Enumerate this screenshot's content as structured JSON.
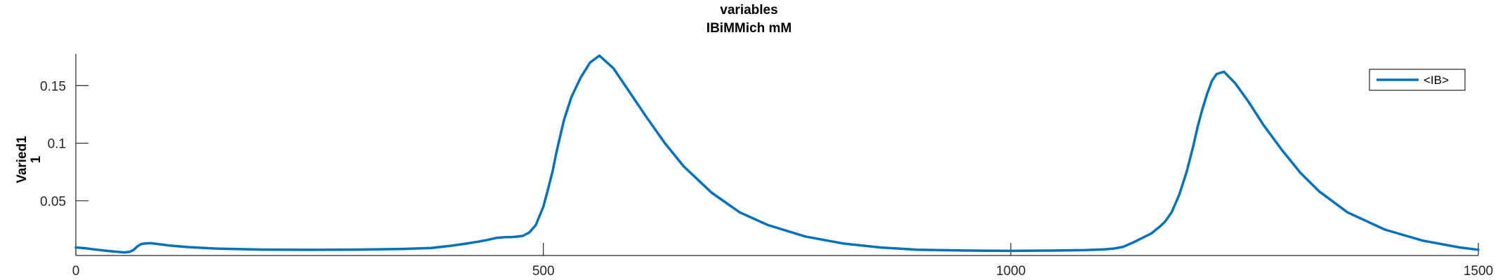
{
  "chart_data": {
    "type": "line",
    "title_lines": [
      "variables",
      "IBiMMich mM"
    ],
    "ylabel_lines": [
      "Varied1",
      "1"
    ],
    "xlabel": "",
    "xlim": [
      0,
      1500
    ],
    "ylim": [
      0.0025,
      0.1775
    ],
    "xticks": [
      0,
      500,
      1000,
      1500
    ],
    "xtick_labels": [
      "0",
      "500",
      "1000",
      "1500"
    ],
    "yticks": [
      0.05,
      0.1,
      0.15
    ],
    "ytick_labels": [
      "0.05",
      "0.1",
      "0.15"
    ],
    "grid": false,
    "legend_position": "top-right",
    "color": "#0072BD",
    "series": [
      {
        "name": "<IB>",
        "x": [
          0,
          10,
          20,
          30,
          40,
          52,
          58,
          62,
          66,
          70,
          75,
          80,
          90,
          100,
          120,
          150,
          200,
          250,
          300,
          350,
          380,
          400,
          415,
          430,
          440,
          450,
          460,
          465,
          470,
          478,
          485,
          492,
          500,
          505,
          510,
          514,
          518,
          522,
          530,
          540,
          550,
          560,
          575,
          590,
          610,
          630,
          650,
          680,
          710,
          740,
          780,
          820,
          860,
          900,
          950,
          1000,
          1050,
          1080,
          1100,
          1110,
          1120,
          1130,
          1140,
          1150,
          1160,
          1165,
          1172,
          1180,
          1188,
          1195,
          1200,
          1205,
          1210,
          1215,
          1220,
          1228,
          1240,
          1255,
          1270,
          1290,
          1310,
          1330,
          1360,
          1400,
          1440,
          1480,
          1500
        ],
        "y": [
          0.0095,
          0.0088,
          0.0078,
          0.0068,
          0.006,
          0.0052,
          0.0058,
          0.0075,
          0.0105,
          0.0125,
          0.013,
          0.0132,
          0.0122,
          0.0112,
          0.0098,
          0.0085,
          0.0076,
          0.0074,
          0.0076,
          0.0082,
          0.009,
          0.0108,
          0.0125,
          0.0145,
          0.016,
          0.0178,
          0.0185,
          0.0185,
          0.0188,
          0.0195,
          0.0225,
          0.029,
          0.045,
          0.06,
          0.076,
          0.092,
          0.106,
          0.12,
          0.14,
          0.157,
          0.17,
          0.176,
          0.165,
          0.147,
          0.123,
          0.1,
          0.08,
          0.057,
          0.04,
          0.029,
          0.019,
          0.013,
          0.0095,
          0.0075,
          0.0068,
          0.0065,
          0.0068,
          0.0072,
          0.0078,
          0.0085,
          0.01,
          0.0135,
          0.0175,
          0.0215,
          0.028,
          0.032,
          0.04,
          0.055,
          0.075,
          0.097,
          0.115,
          0.13,
          0.143,
          0.154,
          0.16,
          0.162,
          0.152,
          0.135,
          0.116,
          0.094,
          0.074,
          0.058,
          0.04,
          0.025,
          0.0155,
          0.0095,
          0.0075
        ]
      }
    ]
  }
}
